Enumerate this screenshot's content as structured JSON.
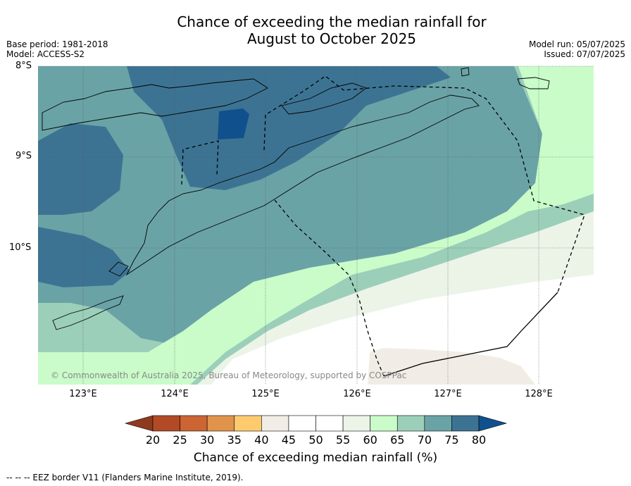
{
  "title_line1": "Chance of exceeding the median rainfall for",
  "title_line2": "August to October 2025",
  "base_period": "Base period: 1981-2018",
  "model": "Model: ACCESS-S2",
  "model_run": "Model run: 05/07/2025",
  "issued": "Issued: 07/07/2025",
  "copyright": "© Commonwealth of Australia 2025, Bureau of Meteorology, supported by COSPPac",
  "lat_labels": [
    "8°S",
    "9°S",
    "10°S"
  ],
  "lon_labels": [
    "123°E",
    "124°E",
    "125°E",
    "126°E",
    "127°E",
    "128°E"
  ],
  "colorbar": {
    "label": "Chance of exceeding median rainfall (%)",
    "ticks": [
      "20",
      "25",
      "30",
      "35",
      "40",
      "45",
      "50",
      "55",
      "60",
      "65",
      "70",
      "75",
      "80"
    ],
    "colors": [
      "#8e3a1e",
      "#b34a26",
      "#cc6433",
      "#e0934a",
      "#fdcb6e",
      "#f1ede6",
      "#ffffff",
      "#ffffff",
      "#ecf4e8",
      "#c9fcc9",
      "#9ccfb9",
      "#6aa3a6",
      "#3d7392",
      "#10508c"
    ]
  },
  "footnote": "-- -- -- EEZ border V11 (Flanders Marine Institute, 2019)."
}
